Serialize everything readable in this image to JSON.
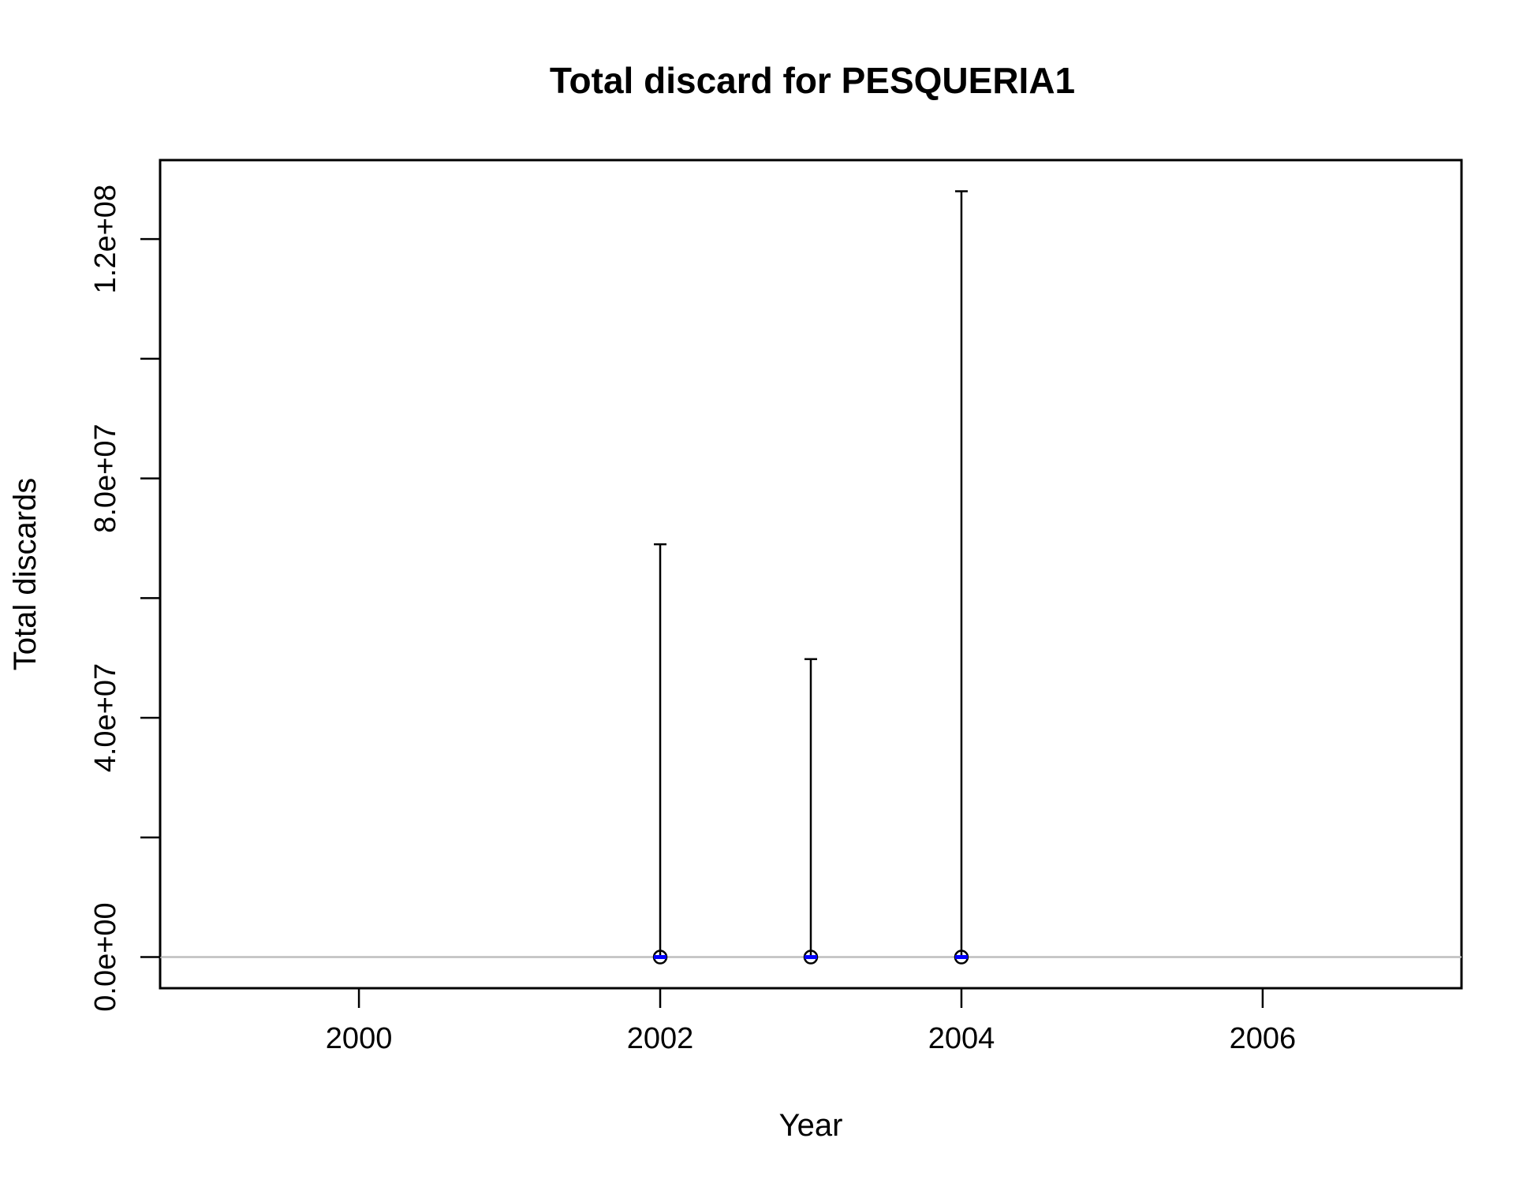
{
  "chart_data": {
    "type": "scatter",
    "title": "Total discard for PESQUERIA1",
    "xlabel": "Year",
    "ylabel": "Total discards",
    "xlim": [
      1998.68,
      2007.32
    ],
    "ylim": [
      -5200000,
      133200000
    ],
    "x_ticks": [
      2000,
      2002,
      2004,
      2006
    ],
    "x_tick_labels": [
      "2000",
      "2002",
      "2004",
      "2006"
    ],
    "y_ticks": [
      0,
      20000000,
      40000000,
      60000000,
      80000000,
      100000000,
      120000000
    ],
    "y_tick_labels": [
      "0.0e+00",
      "",
      "4.0e+07",
      "",
      "8.0e+07",
      "",
      "1.2e+08"
    ],
    "reference_line": {
      "y": 0,
      "color": "#bebebe"
    },
    "points": [
      {
        "year": 2002,
        "value": 0,
        "upper": 69000000
      },
      {
        "year": 2003,
        "value": 0,
        "upper": 49800000
      },
      {
        "year": 2004,
        "value": 0,
        "upper": 128000000
      }
    ],
    "colors": {
      "point_fill": "#0000ff",
      "point_stroke": "#000000",
      "error_bar": "#000000"
    },
    "grid": false,
    "legend": "none"
  }
}
